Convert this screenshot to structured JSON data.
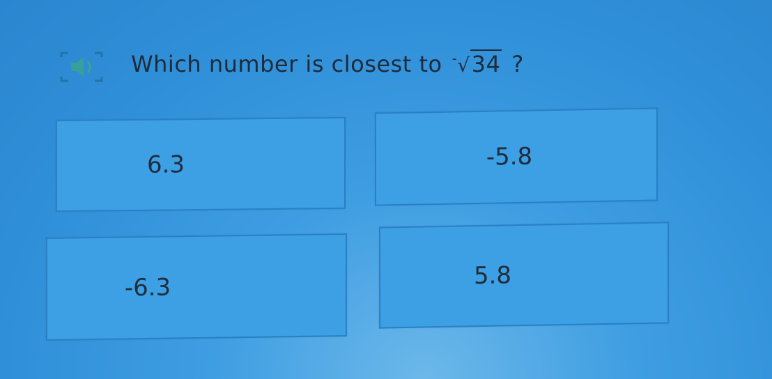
{
  "question": {
    "prefix": "Which number is closest to",
    "negative_sign": "-",
    "radicand": "34",
    "suffix": "?",
    "read_aloud_icon": "speaker-icon"
  },
  "choices": [
    {
      "label": "6.3"
    },
    {
      "label": "-5.8"
    },
    {
      "label": "-6.3"
    },
    {
      "label": "5.8"
    }
  ],
  "colors": {
    "background": "#3a99df",
    "text": "#1d2b3a",
    "choice_border": "#2a80c4"
  }
}
